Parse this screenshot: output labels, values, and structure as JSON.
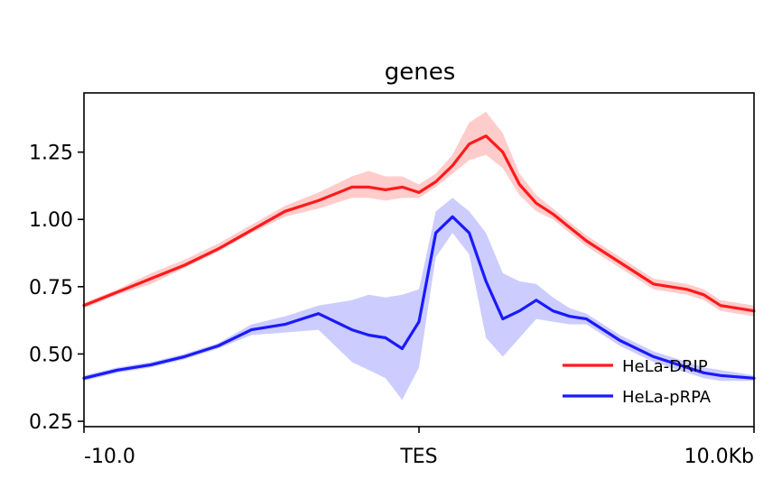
{
  "chart_data": {
    "type": "line",
    "title": "genes",
    "xlabel": "",
    "ylabel": "",
    "x_tick_labels": [
      "-10.0",
      "TES",
      "10.0Kb"
    ],
    "x_tick_values": [
      -10,
      0,
      10
    ],
    "xlim": [
      -10,
      10
    ],
    "ylim": [
      0.23,
      1.47
    ],
    "y_ticks": [
      0.25,
      0.5,
      0.75,
      1.0,
      1.25
    ],
    "y_tick_labels": [
      "0.25",
      "0.50",
      "0.75",
      "1.00",
      "1.25"
    ],
    "grid": false,
    "legend_position": "lower-right",
    "x": [
      -10,
      -9,
      -8,
      -7,
      -6,
      -5,
      -4,
      -3,
      -2,
      -1.5,
      -1,
      -0.5,
      0,
      0.5,
      1,
      1.5,
      2,
      2.5,
      3,
      3.5,
      4,
      4.5,
      5,
      6,
      7,
      8,
      8.5,
      9,
      10
    ],
    "series": [
      {
        "name": "HeLa-DRIP",
        "color": "#ff1a1a",
        "band_color": "#ffcccc",
        "values": [
          0.68,
          0.73,
          0.78,
          0.83,
          0.89,
          0.96,
          1.03,
          1.07,
          1.12,
          1.12,
          1.11,
          1.12,
          1.1,
          1.14,
          1.2,
          1.28,
          1.31,
          1.25,
          1.13,
          1.06,
          1.02,
          0.97,
          0.92,
          0.84,
          0.76,
          0.74,
          0.72,
          0.68,
          0.66
        ],
        "lower": [
          0.67,
          0.72,
          0.76,
          0.82,
          0.88,
          0.95,
          1.01,
          1.04,
          1.08,
          1.08,
          1.07,
          1.08,
          1.08,
          1.12,
          1.17,
          1.22,
          1.24,
          1.19,
          1.09,
          1.03,
          1.0,
          0.95,
          0.9,
          0.82,
          0.74,
          0.72,
          0.7,
          0.66,
          0.64
        ],
        "upper": [
          0.69,
          0.74,
          0.8,
          0.85,
          0.91,
          0.98,
          1.05,
          1.1,
          1.16,
          1.18,
          1.16,
          1.16,
          1.13,
          1.17,
          1.24,
          1.36,
          1.4,
          1.32,
          1.17,
          1.09,
          1.04,
          0.99,
          0.94,
          0.86,
          0.78,
          0.76,
          0.74,
          0.7,
          0.68
        ]
      },
      {
        "name": "HeLa-pRPA",
        "color": "#1a1aff",
        "band_color": "#ccccff",
        "values": [
          0.41,
          0.44,
          0.46,
          0.49,
          0.53,
          0.59,
          0.61,
          0.65,
          0.59,
          0.57,
          0.56,
          0.52,
          0.62,
          0.95,
          1.01,
          0.95,
          0.77,
          0.63,
          0.66,
          0.7,
          0.66,
          0.64,
          0.63,
          0.55,
          0.49,
          0.45,
          0.43,
          0.42,
          0.41
        ],
        "lower": [
          0.4,
          0.43,
          0.45,
          0.48,
          0.52,
          0.57,
          0.58,
          0.59,
          0.47,
          0.44,
          0.41,
          0.33,
          0.45,
          0.86,
          0.95,
          0.87,
          0.56,
          0.49,
          0.56,
          0.63,
          0.62,
          0.61,
          0.61,
          0.53,
          0.47,
          0.43,
          0.41,
          0.4,
          0.4
        ],
        "upper": [
          0.42,
          0.45,
          0.47,
          0.5,
          0.54,
          0.61,
          0.64,
          0.68,
          0.7,
          0.72,
          0.71,
          0.72,
          0.74,
          1.03,
          1.08,
          1.03,
          0.95,
          0.8,
          0.77,
          0.76,
          0.71,
          0.67,
          0.65,
          0.57,
          0.51,
          0.47,
          0.45,
          0.44,
          0.42
        ]
      }
    ]
  }
}
